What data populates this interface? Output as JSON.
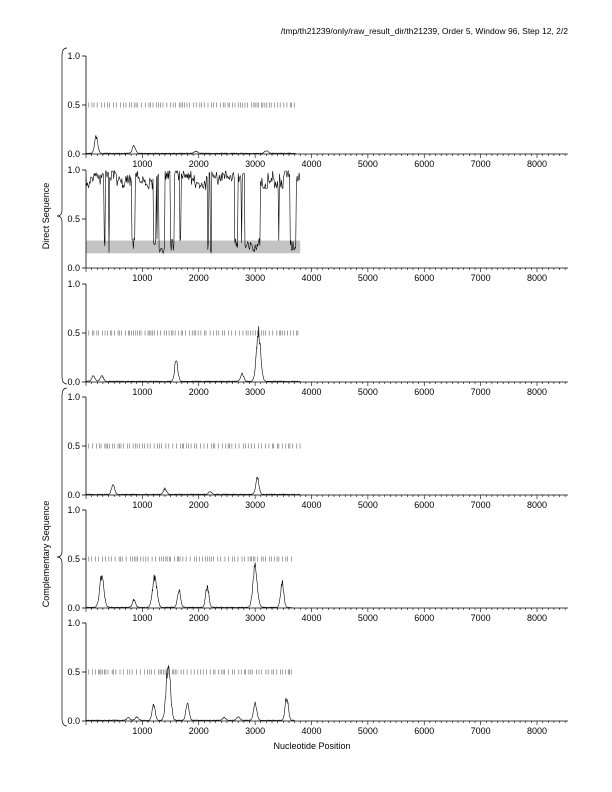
{
  "header": {
    "text": "/tmp/th21239/only/raw_result_dir/th21239, Order 5, Window 96, Step 12, 2/2"
  },
  "group_labels": {
    "direct": "Direct Sequence",
    "complementary": "Complementary Sequence"
  },
  "chart_data": {
    "type": "line",
    "xlabel": "Nucleotide Position",
    "xlim": [
      0,
      8550
    ],
    "x_ticks": [
      1000,
      2000,
      3000,
      4000,
      5000,
      6000,
      7000,
      8000
    ],
    "x_tick_labels": [
      "1000",
      "2000",
      "3000",
      "4000",
      "5000",
      "6000",
      "7000",
      "8000"
    ],
    "y_ticks": [
      0.0,
      0.5,
      1.0
    ],
    "y_tick_labels": [
      "0.0",
      "0.5",
      "1.0"
    ],
    "ylim": [
      0,
      1
    ],
    "panels": [
      {
        "group": "direct",
        "orf_ticks": {
          "y": 0.5,
          "x_start": 50,
          "x_end": 3720
        },
        "peaks": [
          [
            180,
            0.18
          ],
          [
            850,
            0.08
          ],
          [
            1950,
            0.02
          ],
          [
            3200,
            0.03
          ]
        ]
      },
      {
        "group": "direct",
        "band": [
          0.15,
          0.28
        ],
        "band_x": [
          0,
          3800
        ],
        "oscillating": {
          "x_start": 0,
          "x_end": 3800,
          "high": 0.97,
          "low": 0.17
        }
      },
      {
        "group": "direct",
        "orf_ticks": {
          "y": 0.5,
          "x_start": 50,
          "x_end": 3800
        },
        "peaks": [
          [
            130,
            0.06
          ],
          [
            280,
            0.06
          ],
          [
            1600,
            0.22
          ],
          [
            2770,
            0.08
          ],
          [
            3060,
            0.52
          ]
        ]
      },
      {
        "group": "complementary",
        "orf_ticks": {
          "y": 0.5,
          "x_start": 50,
          "x_end": 3800
        },
        "peaks": [
          [
            480,
            0.1
          ],
          [
            1400,
            0.06
          ],
          [
            2200,
            0.03
          ],
          [
            3040,
            0.18
          ]
        ]
      },
      {
        "group": "complementary",
        "orf_ticks": {
          "y": 0.5,
          "x_start": 50,
          "x_end": 3650
        },
        "peaks": [
          [
            280,
            0.33
          ],
          [
            850,
            0.08
          ],
          [
            1220,
            0.32
          ],
          [
            1650,
            0.17
          ],
          [
            2150,
            0.22
          ],
          [
            3000,
            0.45
          ],
          [
            3480,
            0.27
          ]
        ]
      },
      {
        "group": "complementary",
        "orf_ticks": {
          "y": 0.5,
          "x_start": 50,
          "x_end": 3700
        },
        "peaks": [
          [
            750,
            0.03
          ],
          [
            900,
            0.04
          ],
          [
            1200,
            0.16
          ],
          [
            1460,
            0.6
          ],
          [
            1800,
            0.18
          ],
          [
            2450,
            0.03
          ],
          [
            2700,
            0.04
          ],
          [
            3000,
            0.2
          ],
          [
            3560,
            0.25
          ]
        ]
      }
    ]
  }
}
